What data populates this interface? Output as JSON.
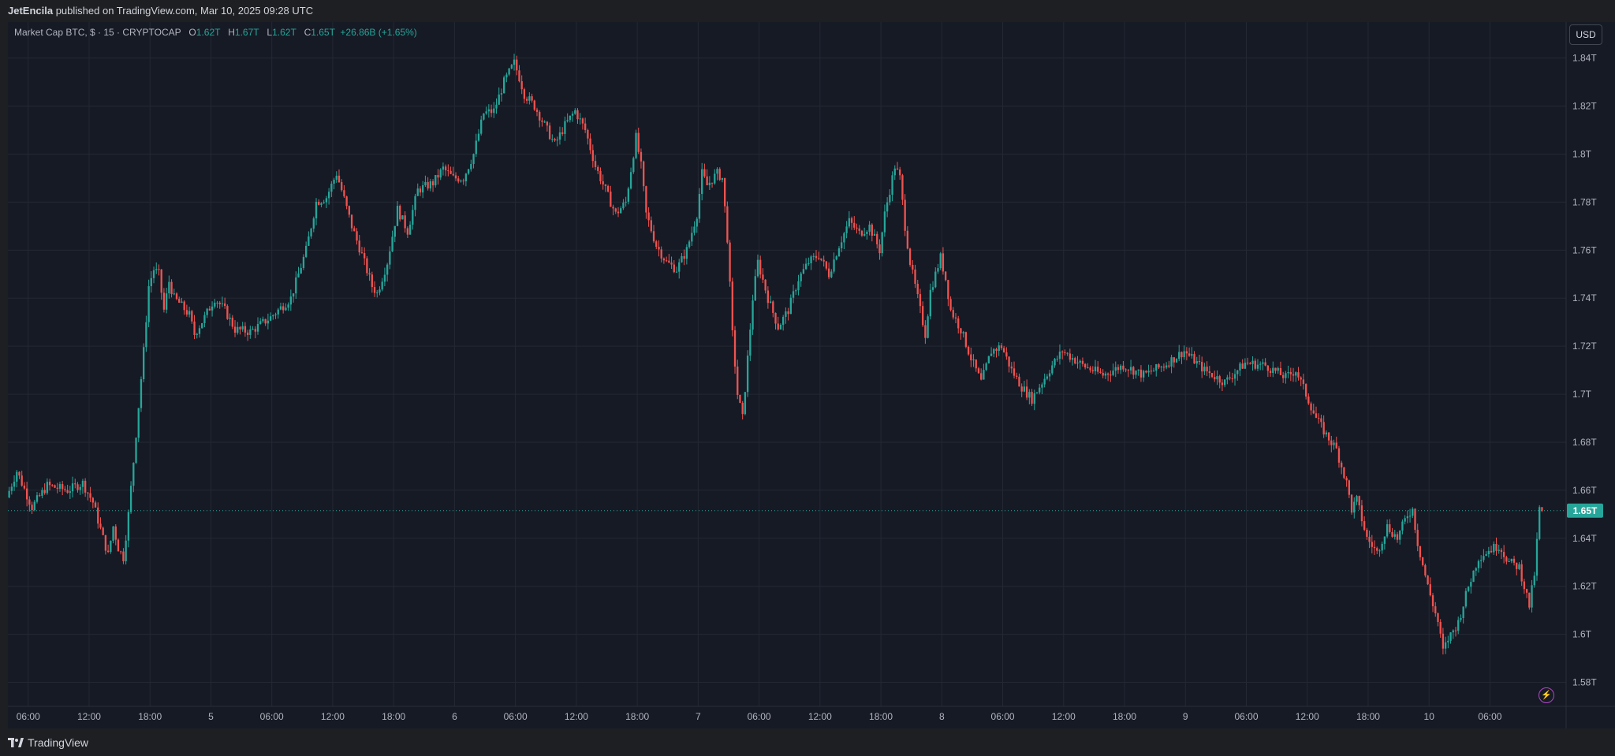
{
  "header": {
    "author": "JetEncila",
    "published_text": " published on TradingView.com, Mar 10, 2025 09:28 UTC"
  },
  "legend": {
    "symbol": "Market Cap BTC, $ · 15 · CRYPTOCAP",
    "open_label": "O",
    "open": "1.62T",
    "high_label": "H",
    "high": "1.67T",
    "low_label": "L",
    "low": "1.62T",
    "close_label": "C",
    "close": "1.65T",
    "change": "+26.86B (+1.65%)"
  },
  "currency_button": "USD",
  "brand": "TradingView",
  "colors": {
    "background": "#161a25",
    "grid": "#242833",
    "up": "#26a69a",
    "down": "#ef5350",
    "axis_text": "#b2b5be",
    "price_tag": "#26a69a"
  },
  "chart_data": {
    "type": "candlestick",
    "title": "Market Cap BTC, $ · 15 · CRYPTOCAP",
    "interval": "15",
    "y_unit": "USD (trillions)",
    "ylim": [
      1.57,
      1.855
    ],
    "y_ticks": [
      {
        "value": 1.58,
        "label": "1.58T"
      },
      {
        "value": 1.6,
        "label": "1.6T"
      },
      {
        "value": 1.62,
        "label": "1.62T"
      },
      {
        "value": 1.64,
        "label": "1.64T"
      },
      {
        "value": 1.66,
        "label": "1.66T"
      },
      {
        "value": 1.68,
        "label": "1.68T"
      },
      {
        "value": 1.7,
        "label": "1.7T"
      },
      {
        "value": 1.72,
        "label": "1.72T"
      },
      {
        "value": 1.74,
        "label": "1.74T"
      },
      {
        "value": 1.76,
        "label": "1.76T"
      },
      {
        "value": 1.78,
        "label": "1.78T"
      },
      {
        "value": 1.8,
        "label": "1.8T"
      },
      {
        "value": 1.82,
        "label": "1.82T"
      },
      {
        "value": 1.84,
        "label": "1.84T"
      }
    ],
    "x_range_hours": [
      -20,
      133.5
    ],
    "x_ticks": [
      {
        "hour": -18,
        "label": "06:00"
      },
      {
        "hour": -12,
        "label": "12:00"
      },
      {
        "hour": -6,
        "label": "18:00"
      },
      {
        "hour": 0,
        "label": "5"
      },
      {
        "hour": 6,
        "label": "06:00"
      },
      {
        "hour": 12,
        "label": "12:00"
      },
      {
        "hour": 18,
        "label": "18:00"
      },
      {
        "hour": 24,
        "label": "6"
      },
      {
        "hour": 30,
        "label": "06:00"
      },
      {
        "hour": 36,
        "label": "12:00"
      },
      {
        "hour": 42,
        "label": "18:00"
      },
      {
        "hour": 48,
        "label": "7"
      },
      {
        "hour": 54,
        "label": "06:00"
      },
      {
        "hour": 60,
        "label": "12:00"
      },
      {
        "hour": 66,
        "label": "18:00"
      },
      {
        "hour": 72,
        "label": "8"
      },
      {
        "hour": 78,
        "label": "06:00"
      },
      {
        "hour": 84,
        "label": "12:00"
      },
      {
        "hour": 90,
        "label": "18:00"
      },
      {
        "hour": 96,
        "label": "9"
      },
      {
        "hour": 102,
        "label": "06:00"
      },
      {
        "hour": 108,
        "label": "12:00"
      },
      {
        "hour": 114,
        "label": "18:00"
      },
      {
        "hour": 120,
        "label": "10"
      },
      {
        "hour": 126,
        "label": "06:00"
      }
    ],
    "last_price": {
      "value": 1.6515,
      "label": "1.65T"
    },
    "price_path": [
      [
        -20,
        1.657
      ],
      [
        -19,
        1.668
      ],
      [
        -17.5,
        1.653
      ],
      [
        -16,
        1.662
      ],
      [
        -14,
        1.66
      ],
      [
        -12.5,
        1.663
      ],
      [
        -11.5,
        1.655
      ],
      [
        -10.5,
        1.64
      ],
      [
        -10,
        1.633
      ],
      [
        -9.5,
        1.645
      ],
      [
        -9,
        1.636
      ],
      [
        -8.5,
        1.632
      ],
      [
        -8,
        1.65
      ],
      [
        -7.5,
        1.672
      ],
      [
        -7,
        1.695
      ],
      [
        -6.5,
        1.718
      ],
      [
        -6,
        1.745
      ],
      [
        -5.5,
        1.752
      ],
      [
        -5,
        1.75
      ],
      [
        -4.5,
        1.735
      ],
      [
        -4,
        1.747
      ],
      [
        -3.5,
        1.74
      ],
      [
        -3,
        1.738
      ],
      [
        -2,
        1.733
      ],
      [
        -1.5,
        1.725
      ],
      [
        -0.5,
        1.732
      ],
      [
        0.5,
        1.74
      ],
      [
        1.5,
        1.735
      ],
      [
        2.5,
        1.727
      ],
      [
        4,
        1.726
      ],
      [
        6,
        1.732
      ],
      [
        8,
        1.74
      ],
      [
        9.5,
        1.76
      ],
      [
        10.5,
        1.78
      ],
      [
        11.5,
        1.782
      ],
      [
        12.5,
        1.792
      ],
      [
        13,
        1.785
      ],
      [
        14,
        1.77
      ],
      [
        15,
        1.758
      ],
      [
        16,
        1.745
      ],
      [
        16.5,
        1.742
      ],
      [
        17.5,
        1.755
      ],
      [
        18.5,
        1.777
      ],
      [
        19.5,
        1.768
      ],
      [
        20.5,
        1.785
      ],
      [
        22,
        1.788
      ],
      [
        23,
        1.794
      ],
      [
        24,
        1.79
      ],
      [
        25,
        1.79
      ],
      [
        26,
        1.8
      ],
      [
        27,
        1.817
      ],
      [
        28,
        1.818
      ],
      [
        29,
        1.83
      ],
      [
        30,
        1.838
      ],
      [
        30.5,
        1.832
      ],
      [
        31,
        1.825
      ],
      [
        32,
        1.82
      ],
      [
        33,
        1.812
      ],
      [
        34,
        1.804
      ],
      [
        35,
        1.812
      ],
      [
        36,
        1.818
      ],
      [
        37,
        1.81
      ],
      [
        38,
        1.795
      ],
      [
        39,
        1.785
      ],
      [
        40,
        1.775
      ],
      [
        41,
        1.78
      ],
      [
        42,
        1.807
      ],
      [
        42.5,
        1.795
      ],
      [
        43,
        1.775
      ],
      [
        44,
        1.762
      ],
      [
        45,
        1.755
      ],
      [
        46,
        1.752
      ],
      [
        47,
        1.76
      ],
      [
        48,
        1.775
      ],
      [
        48.5,
        1.792
      ],
      [
        49,
        1.787
      ],
      [
        50,
        1.792
      ],
      [
        50.5,
        1.79
      ],
      [
        51,
        1.765
      ],
      [
        51.5,
        1.725
      ],
      [
        52,
        1.7
      ],
      [
        52.5,
        1.69
      ],
      [
        53,
        1.715
      ],
      [
        53.5,
        1.74
      ],
      [
        54,
        1.755
      ],
      [
        55,
        1.74
      ],
      [
        56,
        1.728
      ],
      [
        57,
        1.735
      ],
      [
        58,
        1.748
      ],
      [
        59,
        1.755
      ],
      [
        60,
        1.758
      ],
      [
        61,
        1.75
      ],
      [
        62,
        1.762
      ],
      [
        63,
        1.772
      ],
      [
        64,
        1.767
      ],
      [
        65,
        1.77
      ],
      [
        66,
        1.76
      ],
      [
        66.5,
        1.775
      ],
      [
        67,
        1.785
      ],
      [
        67.5,
        1.795
      ],
      [
        68,
        1.79
      ],
      [
        68.5,
        1.77
      ],
      [
        69,
        1.755
      ],
      [
        70,
        1.735
      ],
      [
        70.5,
        1.725
      ],
      [
        71,
        1.743
      ],
      [
        72,
        1.757
      ],
      [
        72.5,
        1.748
      ],
      [
        73,
        1.735
      ],
      [
        74,
        1.727
      ],
      [
        75,
        1.715
      ],
      [
        76,
        1.705
      ],
      [
        77,
        1.718
      ],
      [
        78,
        1.72
      ],
      [
        79,
        1.71
      ],
      [
        80,
        1.703
      ],
      [
        81,
        1.698
      ],
      [
        82,
        1.705
      ],
      [
        83,
        1.712
      ],
      [
        84,
        1.718
      ],
      [
        86,
        1.712
      ],
      [
        88,
        1.708
      ],
      [
        90,
        1.712
      ],
      [
        92,
        1.708
      ],
      [
        94,
        1.712
      ],
      [
        96,
        1.718
      ],
      [
        98,
        1.71
      ],
      [
        100,
        1.705
      ],
      [
        102,
        1.713
      ],
      [
        104,
        1.712
      ],
      [
        106,
        1.707
      ],
      [
        107,
        1.71
      ],
      [
        108,
        1.7
      ],
      [
        109,
        1.69
      ],
      [
        110,
        1.683
      ],
      [
        111,
        1.677
      ],
      [
        112,
        1.663
      ],
      [
        112.5,
        1.652
      ],
      [
        113,
        1.656
      ],
      [
        114,
        1.64
      ],
      [
        115,
        1.634
      ],
      [
        116,
        1.645
      ],
      [
        117,
        1.64
      ],
      [
        118,
        1.65
      ],
      [
        118.5,
        1.652
      ],
      [
        119,
        1.638
      ],
      [
        120,
        1.62
      ],
      [
        121,
        1.605
      ],
      [
        121.5,
        1.593
      ],
      [
        122,
        1.598
      ],
      [
        123,
        1.605
      ],
      [
        124,
        1.62
      ],
      [
        125,
        1.632
      ],
      [
        126,
        1.635
      ],
      [
        127,
        1.637
      ],
      [
        128,
        1.63
      ],
      [
        129,
        1.628
      ],
      [
        129.5,
        1.62
      ],
      [
        130,
        1.612
      ],
      [
        130.5,
        1.625
      ],
      [
        131,
        1.652
      ]
    ]
  }
}
